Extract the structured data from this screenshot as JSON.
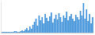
{
  "chart_data": {
    "type": "bar",
    "categories": [
      null,
      null,
      null,
      null,
      null,
      null,
      null,
      null,
      null,
      null,
      null,
      null,
      null,
      null,
      null,
      null,
      null,
      null,
      null,
      null,
      null,
      null,
      null,
      null,
      null,
      null,
      null,
      null,
      null,
      null,
      null,
      null,
      null,
      null,
      null,
      null,
      null,
      null,
      null,
      null,
      null,
      null,
      null,
      null,
      null,
      null,
      null,
      null,
      null,
      null,
      null,
      null,
      null,
      null,
      null,
      null,
      null,
      null,
      null,
      null
    ],
    "values": [
      1,
      1,
      1,
      1,
      1,
      1,
      1,
      1,
      2,
      2,
      1,
      1,
      2,
      3,
      2,
      4,
      6,
      3,
      8,
      5,
      10,
      14,
      18,
      9,
      22,
      16,
      20,
      12,
      24,
      19,
      15,
      21,
      26,
      13,
      18,
      23,
      17,
      25,
      20,
      14,
      22,
      19,
      27,
      16,
      21,
      24,
      18,
      15,
      23,
      20,
      17,
      28,
      22,
      38,
      18,
      30,
      15,
      24,
      12,
      20
    ],
    "color": "#3a8fd8",
    "ylim": [
      0,
      40
    ],
    "grid": false,
    "tick_labels": false
  }
}
